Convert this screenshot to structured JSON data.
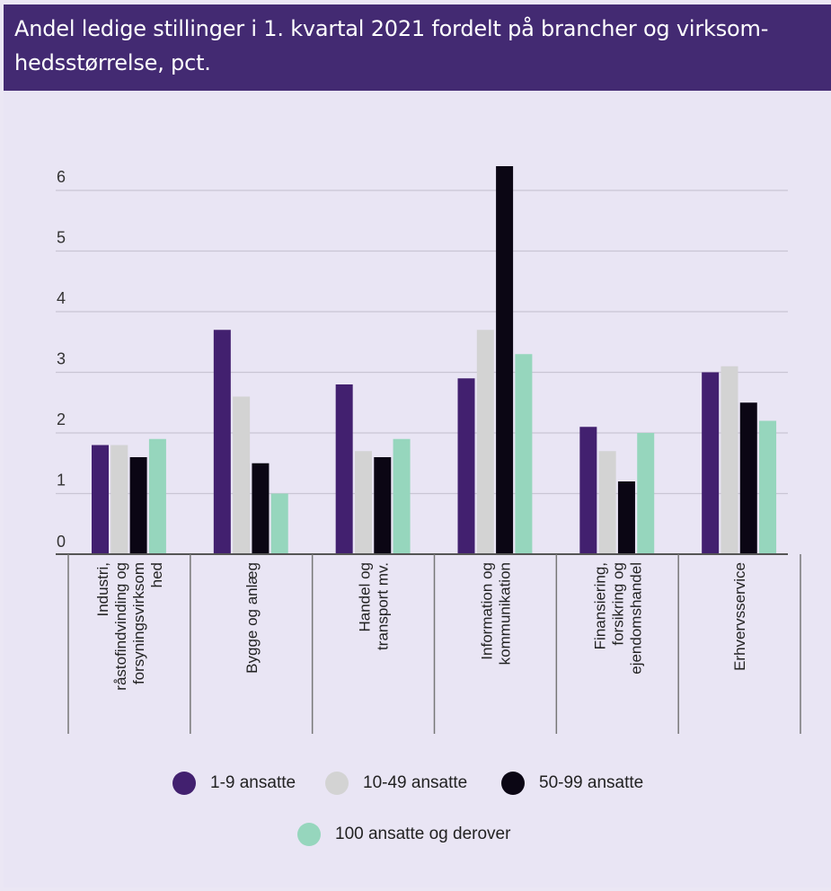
{
  "title": "Andel ledige stillinger i 1. kvartal 2021 fordelt på brancher og virksom-hedsstørrelse, pct.",
  "title_lines": [
    "Andel ledige stillinger i 1. kvartal 2021 fordelt på brancher og virksom-",
    "hedsstørrelse, pct."
  ],
  "colors": {
    "header_bg": "#432a72",
    "plot_bg": "#e9e5f4",
    "series": [
      "#42206f",
      "#d3d3d3",
      "#0b0614",
      "#96d6bd"
    ]
  },
  "chart_data": {
    "type": "bar",
    "categories": [
      "Industri, råstofindvinding og forsyningsvirksomhed",
      "Bygge og anlæg",
      "Handel og transport mv.",
      "Information og kommunikation",
      "Finansiering, forsikring og ejendomshandel",
      "Erhvervsservice"
    ],
    "category_label_lines": [
      [
        "Industri,",
        "råstofindvinding og",
        "forsyningsvirksom",
        "hed"
      ],
      [
        "Bygge og anlæg"
      ],
      [
        "Handel og",
        "transport mv."
      ],
      [
        "Information og",
        "kommunikation"
      ],
      [
        "Finansiering,",
        "forsikring og",
        "ejendomshandel"
      ],
      [
        "Erhvervsservice"
      ]
    ],
    "series": [
      {
        "name": "1-9 ansatte",
        "values": [
          1.8,
          3.7,
          2.8,
          2.9,
          2.1,
          3.0
        ]
      },
      {
        "name": "10-49 ansatte",
        "values": [
          1.8,
          2.6,
          1.7,
          3.7,
          1.7,
          3.1
        ]
      },
      {
        "name": "50-99 ansatte",
        "values": [
          1.6,
          1.5,
          1.6,
          6.4,
          1.2,
          2.5
        ]
      },
      {
        "name": "100 ansatte og derover",
        "values": [
          1.9,
          1.0,
          1.9,
          3.3,
          2.0,
          2.2
        ]
      }
    ],
    "yticks": [
      0,
      1,
      2,
      3,
      4,
      5,
      6
    ],
    "ylim": [
      0,
      6.4
    ],
    "grid": true,
    "legend_position": "bottom"
  }
}
